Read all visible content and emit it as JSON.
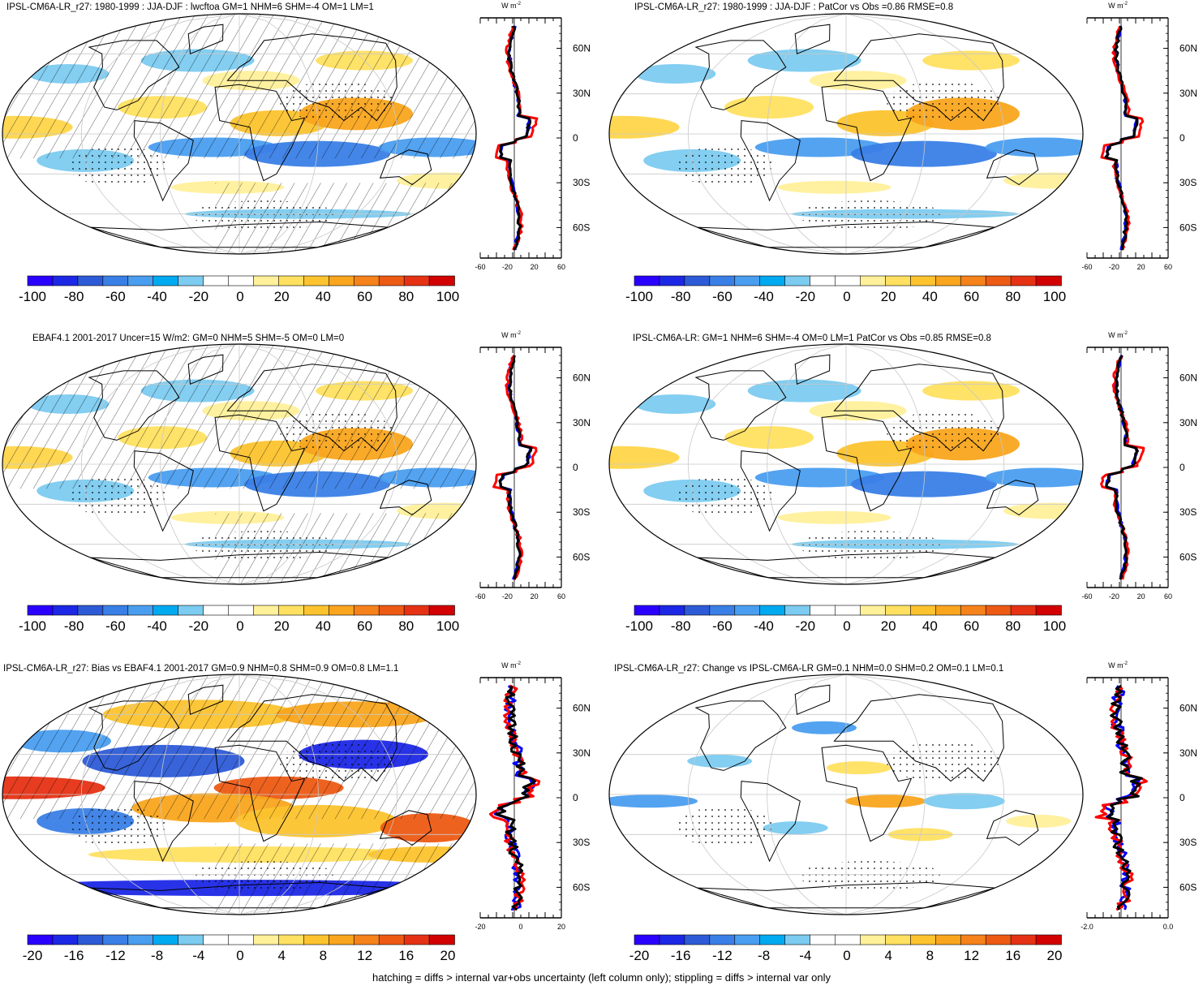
{
  "colors": {
    "ocean_bg": "#ffffff",
    "map_border": "#000000",
    "obs_line": "#0000ff",
    "model_line": "#ff0000",
    "ref_line": "#000000",
    "grid": "#c8c8c8"
  },
  "profile_unit": "W m",
  "profile_unit_sup": "-2",
  "lat_labels": [
    "60N",
    "30N",
    "0",
    "30S",
    "60S"
  ],
  "panels": [
    {
      "id": "p1",
      "title": "IPSL-CM6A-LR_r27: 1980-1999 : JJA-DJF : lwcftoa GM=1 NHM=6 SHM=-4 OM=1 LM=1",
      "hatch": true,
      "stipple": true,
      "pattern": "clim",
      "profile_xticks": [
        "-60",
        "-20",
        "20",
        "60"
      ],
      "colorbar_labels": [
        "-100",
        "-80",
        "-60",
        "-40",
        "-20",
        "0",
        "20",
        "40",
        "60",
        "80",
        "100"
      ]
    },
    {
      "id": "p2",
      "title": "IPSL-CM6A-LR_r27: 1980-1999 : JJA-DJF : PatCor vs Obs =0.86 RMSE=0.8",
      "hatch": false,
      "stipple": true,
      "pattern": "clim",
      "profile_xticks": [
        "-60",
        "-20",
        "20",
        "60"
      ],
      "colorbar_labels": [
        "-100",
        "-80",
        "-60",
        "-40",
        "-20",
        "0",
        "20",
        "40",
        "60",
        "80",
        "100"
      ]
    },
    {
      "id": "p3",
      "title": "EBAF4.1 2001-2017 Uncer=15 W/m2: GM=0 NHM=5 SHM=-5 OM=0 LM=0",
      "hatch": true,
      "stipple": true,
      "pattern": "clim",
      "profile_xticks": [
        "-60",
        "-20",
        "20",
        "60"
      ],
      "colorbar_labels": [
        "-100",
        "-80",
        "-60",
        "-40",
        "-20",
        "0",
        "20",
        "40",
        "60",
        "80",
        "100"
      ]
    },
    {
      "id": "p4",
      "title": "IPSL-CM6A-LR: GM=1 NHM=6 SHM=-4 OM=0 LM=1 PatCor vs Obs =0.85 RMSE=0.8",
      "hatch": false,
      "stipple": true,
      "pattern": "clim",
      "profile_xticks": [
        "-60",
        "-20",
        "20",
        "60"
      ],
      "colorbar_labels": [
        "-100",
        "-80",
        "-60",
        "-40",
        "-20",
        "0",
        "20",
        "40",
        "60",
        "80",
        "100"
      ]
    },
    {
      "id": "p5",
      "title": "IPSL-CM6A-LR_r27: Bias vs EBAF4.1 2001-2017 GM=0.9 NHM=0.8 SHM=0.9 OM=0.8 LM=1.1",
      "hatch": true,
      "stipple": true,
      "pattern": "bias",
      "profile_xticks": [
        "-20",
        "0",
        "20"
      ],
      "colorbar_labels": [
        "-20",
        "-16",
        "-12",
        "-8",
        "-4",
        "0",
        "4",
        "8",
        "12",
        "16",
        "20"
      ]
    },
    {
      "id": "p6",
      "title": "IPSL-CM6A-LR_r27: Change vs IPSL-CM6A-LR GM=0.1 NHM=0.0 SHM=0.2 OM=0.1 LM=0.1",
      "hatch": false,
      "stipple": true,
      "pattern": "change",
      "profile_xticks": [
        "-2.0",
        "0.0"
      ],
      "colorbar_labels": [
        "-20",
        "-16",
        "-12",
        "-8",
        "-4",
        "0",
        "4",
        "8",
        "12",
        "16",
        "20"
      ]
    }
  ],
  "colorbar_colors": [
    "#2a00ff",
    "#1c28e6",
    "#2d5bd7",
    "#3a7fe6",
    "#4a9ef0",
    "#00aaf0",
    "#7ccbf0",
    "#ffffff",
    "#ffffff",
    "#fff09a",
    "#ffe060",
    "#fcc32e",
    "#f9a51e",
    "#f6821b",
    "#ed5a14",
    "#e63214",
    "#d20000"
  ],
  "footer_text": "hatching = diffs > internal var+obs uncertainty (left column only); stippling = diffs > internal var only"
}
